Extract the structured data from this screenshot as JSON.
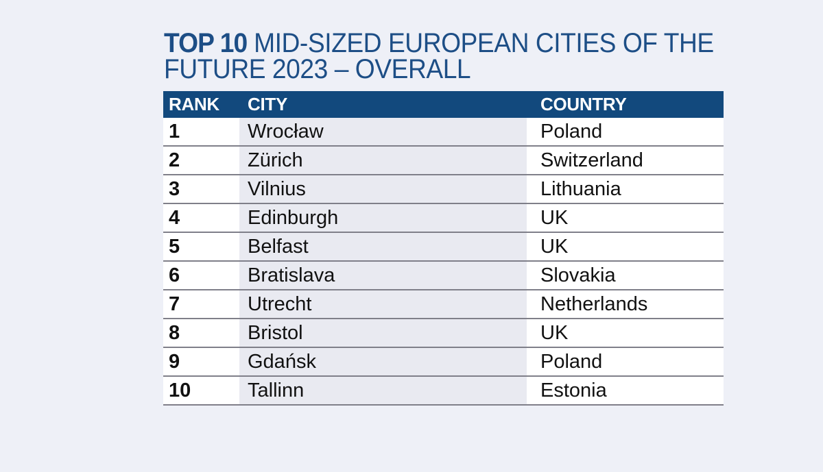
{
  "title": {
    "prefix": "TOP 10",
    "line1_rest": " MID-SIZED EUROPEAN CITIES OF THE",
    "line2": "FUTURE 2023 – OVERALL"
  },
  "table": {
    "headers": {
      "rank": "RANK",
      "city": "CITY",
      "country": "COUNTRY"
    },
    "rows": [
      {
        "rank": "1",
        "city": "Wrocław",
        "country": "Poland"
      },
      {
        "rank": "2",
        "city": "Zürich",
        "country": "Switzerland"
      },
      {
        "rank": "3",
        "city": "Vilnius",
        "country": "Lithuania"
      },
      {
        "rank": "4",
        "city": "Edinburgh",
        "country": "UK"
      },
      {
        "rank": "5",
        "city": "Belfast",
        "country": "UK"
      },
      {
        "rank": "6",
        "city": "Bratislava",
        "country": "Slovakia"
      },
      {
        "rank": "7",
        "city": "Utrecht",
        "country": "Netherlands"
      },
      {
        "rank": "8",
        "city": "Bristol",
        "country": "UK"
      },
      {
        "rank": "9",
        "city": "Gdańsk",
        "country": "Poland"
      },
      {
        "rank": "10",
        "city": "Tallinn",
        "country": "Estonia"
      }
    ]
  },
  "colors": {
    "page_background": "#eef0f7",
    "header_bar": "#12497d",
    "title_blue": "#1d4e86",
    "city_cell_tint": "#e9eaf1",
    "white_cell": "#ffffff",
    "row_separator": "#7f7f89",
    "body_text": "#111111"
  },
  "chart_data": {
    "type": "table",
    "title": "TOP 10 MID-SIZED EUROPEAN CITIES OF THE FUTURE 2023 – OVERALL",
    "columns": [
      "RANK",
      "CITY",
      "COUNTRY"
    ],
    "rows": [
      [
        1,
        "Wrocław",
        "Poland"
      ],
      [
        2,
        "Zürich",
        "Switzerland"
      ],
      [
        3,
        "Vilnius",
        "Lithuania"
      ],
      [
        4,
        "Edinburgh",
        "UK"
      ],
      [
        5,
        "Belfast",
        "UK"
      ],
      [
        6,
        "Bratislava",
        "Slovakia"
      ],
      [
        7,
        "Utrecht",
        "Netherlands"
      ],
      [
        8,
        "Bristol",
        "UK"
      ],
      [
        9,
        "Gdańsk",
        "Poland"
      ],
      [
        10,
        "Tallinn",
        "Estonia"
      ]
    ]
  }
}
